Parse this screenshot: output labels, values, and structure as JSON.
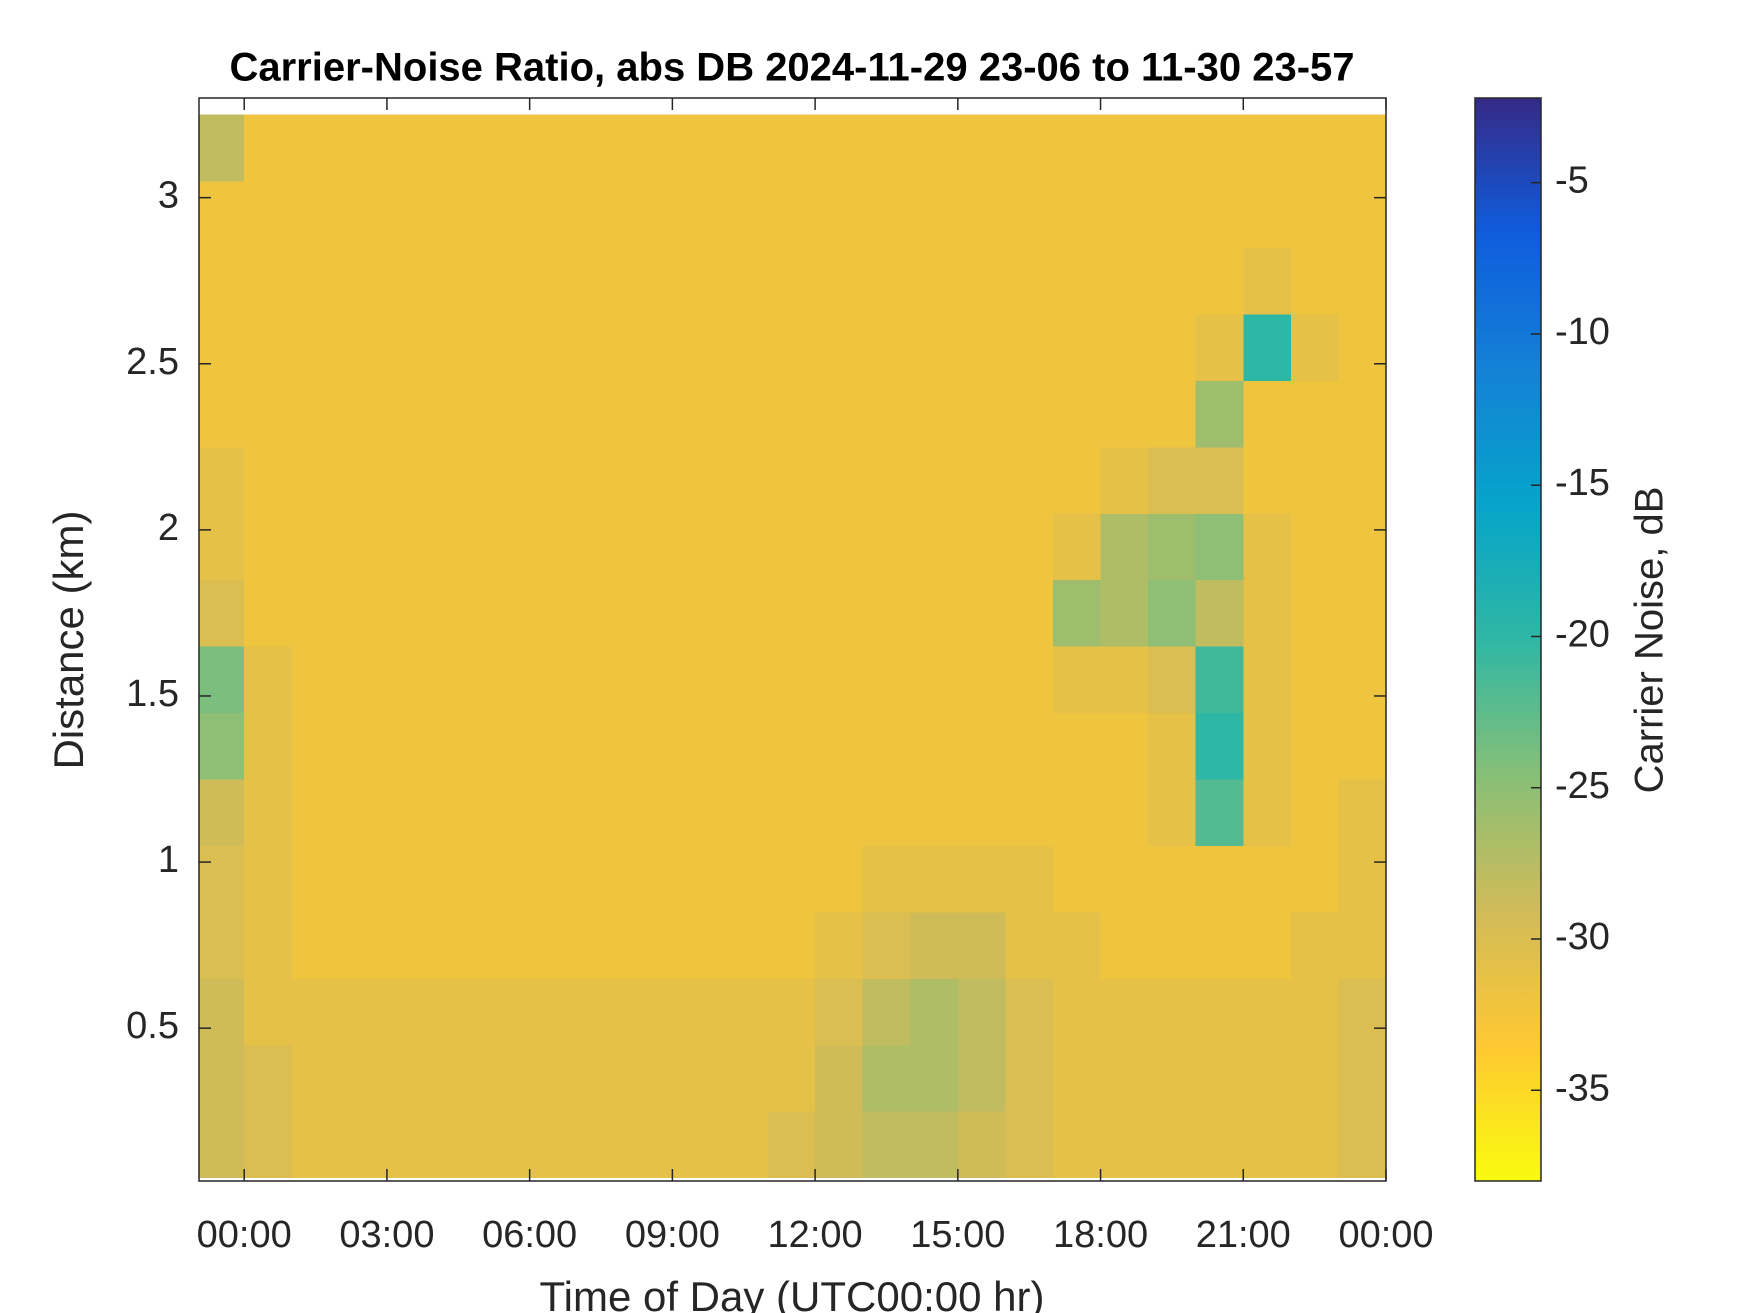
{
  "chart_data": {
    "type": "heatmap",
    "title": "Carrier-Noise Ratio, abs DB 2024-11-29 23-06 to 11-30 23-57",
    "x_label": "Time of Day (UTC00:00 hr)",
    "y_label": "Distance (km)",
    "colorbar_label": "Carrier Noise, dB",
    "x": [
      -0.5,
      0.5,
      1.5,
      2.5,
      3.5,
      4.5,
      5.5,
      6.5,
      7.5,
      8.5,
      9.5,
      10.5,
      11.5,
      12.5,
      13.5,
      14.5,
      15.5,
      16.5,
      17.5,
      18.5,
      19.5,
      20.5,
      21.5,
      22.5,
      23.5
    ],
    "y": [
      0.15,
      0.35,
      0.55,
      0.75,
      0.95,
      1.15,
      1.35,
      1.55,
      1.75,
      1.95,
      2.15,
      2.35,
      2.55,
      2.75,
      2.95,
      3.15
    ],
    "z": [
      [
        -29,
        -30,
        -31,
        -31,
        -31,
        -31,
        -31,
        -31,
        -31,
        -31,
        -31,
        -31,
        -30,
        -29,
        -28,
        -28,
        -29,
        -30,
        -31,
        -31,
        -31,
        -31,
        -31,
        -31,
        -30
      ],
      [
        -29,
        -30,
        -31,
        -31,
        -31,
        -31,
        -31,
        -31,
        -31,
        -31,
        -31,
        -31,
        -31,
        -29,
        -27,
        -27,
        -28,
        -30,
        -31,
        -31,
        -31,
        -31,
        -31,
        -31,
        -30
      ],
      [
        -29,
        -31,
        -31,
        -31,
        -31,
        -31,
        -31,
        -31,
        -31,
        -31,
        -31,
        -31,
        -31,
        -30,
        -28,
        -27,
        -28,
        -30,
        -31,
        -31,
        -31,
        -31,
        -31,
        -31,
        -30
      ],
      [
        -30,
        -31,
        -32,
        -32,
        -32,
        -32,
        -32,
        -32,
        -32,
        -32,
        -32,
        -32,
        -32,
        -31,
        -30,
        -29,
        -29,
        -31,
        -31,
        -32,
        -32,
        -32,
        -32,
        -31,
        -31
      ],
      [
        -30,
        -31,
        -32,
        -32,
        -32,
        -32,
        -32,
        -32,
        -32,
        -32,
        -32,
        -32,
        -32,
        -32,
        -31,
        -31,
        -31,
        -31,
        -32,
        -32,
        -32,
        -32,
        -32,
        -32,
        -31
      ],
      [
        -29,
        -31,
        -32,
        -32,
        -32,
        -32,
        -32,
        -32,
        -32,
        -32,
        -32,
        -32,
        -32,
        -32,
        -32,
        -32,
        -32,
        -32,
        -32,
        -32,
        -31,
        -22,
        -31,
        -32,
        -31
      ],
      [
        -25,
        -31,
        -32,
        -32,
        -32,
        -32,
        -32,
        -32,
        -32,
        -32,
        -32,
        -32,
        -32,
        -32,
        -32,
        -32,
        -32,
        -32,
        -32,
        -32,
        -31,
        -20,
        -31,
        -32,
        -32
      ],
      [
        -24,
        -31,
        -32,
        -32,
        -32,
        -32,
        -32,
        -32,
        -32,
        -32,
        -32,
        -32,
        -32,
        -32,
        -32,
        -32,
        -32,
        -32,
        -31,
        -31,
        -30,
        -21,
        -31,
        -32,
        -32
      ],
      [
        -30,
        -32,
        -32,
        -32,
        -32,
        -32,
        -32,
        -32,
        -32,
        -32,
        -32,
        -32,
        -32,
        -32,
        -32,
        -32,
        -32,
        -32,
        -26,
        -27,
        -25,
        -28,
        -31,
        -32,
        -32
      ],
      [
        -31,
        -32,
        -32,
        -32,
        -32,
        -32,
        -32,
        -32,
        -32,
        -32,
        -32,
        -32,
        -32,
        -32,
        -32,
        -32,
        -32,
        -32,
        -31,
        -27,
        -26,
        -25,
        -31,
        -32,
        -32
      ],
      [
        -31,
        -32,
        -32,
        -32,
        -32,
        -32,
        -32,
        -32,
        -32,
        -32,
        -32,
        -32,
        -32,
        -32,
        -32,
        -32,
        -32,
        -32,
        -32,
        -31,
        -30,
        -30,
        -32,
        -32,
        -32
      ],
      [
        -32,
        -32,
        -32,
        -32,
        -32,
        -32,
        -32,
        -32,
        -32,
        -32,
        -32,
        -32,
        -32,
        -32,
        -32,
        -32,
        -32,
        -32,
        -32,
        -32,
        -32,
        -26,
        -32,
        -32,
        -32
      ],
      [
        -32,
        -32,
        -32,
        -32,
        -32,
        -32,
        -32,
        -32,
        -32,
        -32,
        -32,
        -32,
        -32,
        -32,
        -32,
        -32,
        -32,
        -32,
        -32,
        -32,
        -32,
        -31,
        -20,
        -31,
        -32
      ],
      [
        -32,
        -32,
        -32,
        -32,
        -32,
        -32,
        -32,
        -32,
        -32,
        -32,
        -32,
        -32,
        -32,
        -32,
        -32,
        -32,
        -32,
        -32,
        -32,
        -32,
        -32,
        -32,
        -31,
        -32,
        -32
      ],
      [
        -32,
        -32,
        -32,
        -32,
        -32,
        -32,
        -32,
        -32,
        -32,
        -32,
        -32,
        -32,
        -32,
        -32,
        -32,
        -32,
        -32,
        -32,
        -32,
        -32,
        -32,
        -32,
        -32,
        -32,
        -32
      ],
      [
        -28,
        -32,
        -32,
        -32,
        -32,
        -32,
        -32,
        -32,
        -32,
        -32,
        -32,
        -32,
        -32,
        -32,
        -32,
        -32,
        -32,
        -32,
        -32,
        -32,
        -32,
        -32,
        -32,
        -32,
        -32
      ]
    ],
    "xlim": [
      -0.95,
      24
    ],
    "xticks": [
      {
        "value": 0,
        "label": "00:00"
      },
      {
        "value": 3,
        "label": "03:00"
      },
      {
        "value": 6,
        "label": "06:00"
      },
      {
        "value": 9,
        "label": "09:00"
      },
      {
        "value": 12,
        "label": "12:00"
      },
      {
        "value": 15,
        "label": "15:00"
      },
      {
        "value": 18,
        "label": "18:00"
      },
      {
        "value": 21,
        "label": "21:00"
      },
      {
        "value": 24,
        "label": "00:00"
      }
    ],
    "ylim": [
      0.04,
      3.3
    ],
    "yticks": [
      0.5,
      1,
      1.5,
      2,
      2.5,
      3
    ],
    "clim": [
      -38,
      -2.2
    ],
    "cticks": [
      -35,
      -30,
      -25,
      -20,
      -15,
      -10,
      -5
    ],
    "colormap": [
      "#f9fb0e",
      "#fec832",
      "#d1bb59",
      "#87bf77",
      "#2eb7a4",
      "#06a4ca",
      "#1481d6",
      "#0f5cdd",
      "#352a87"
    ]
  }
}
